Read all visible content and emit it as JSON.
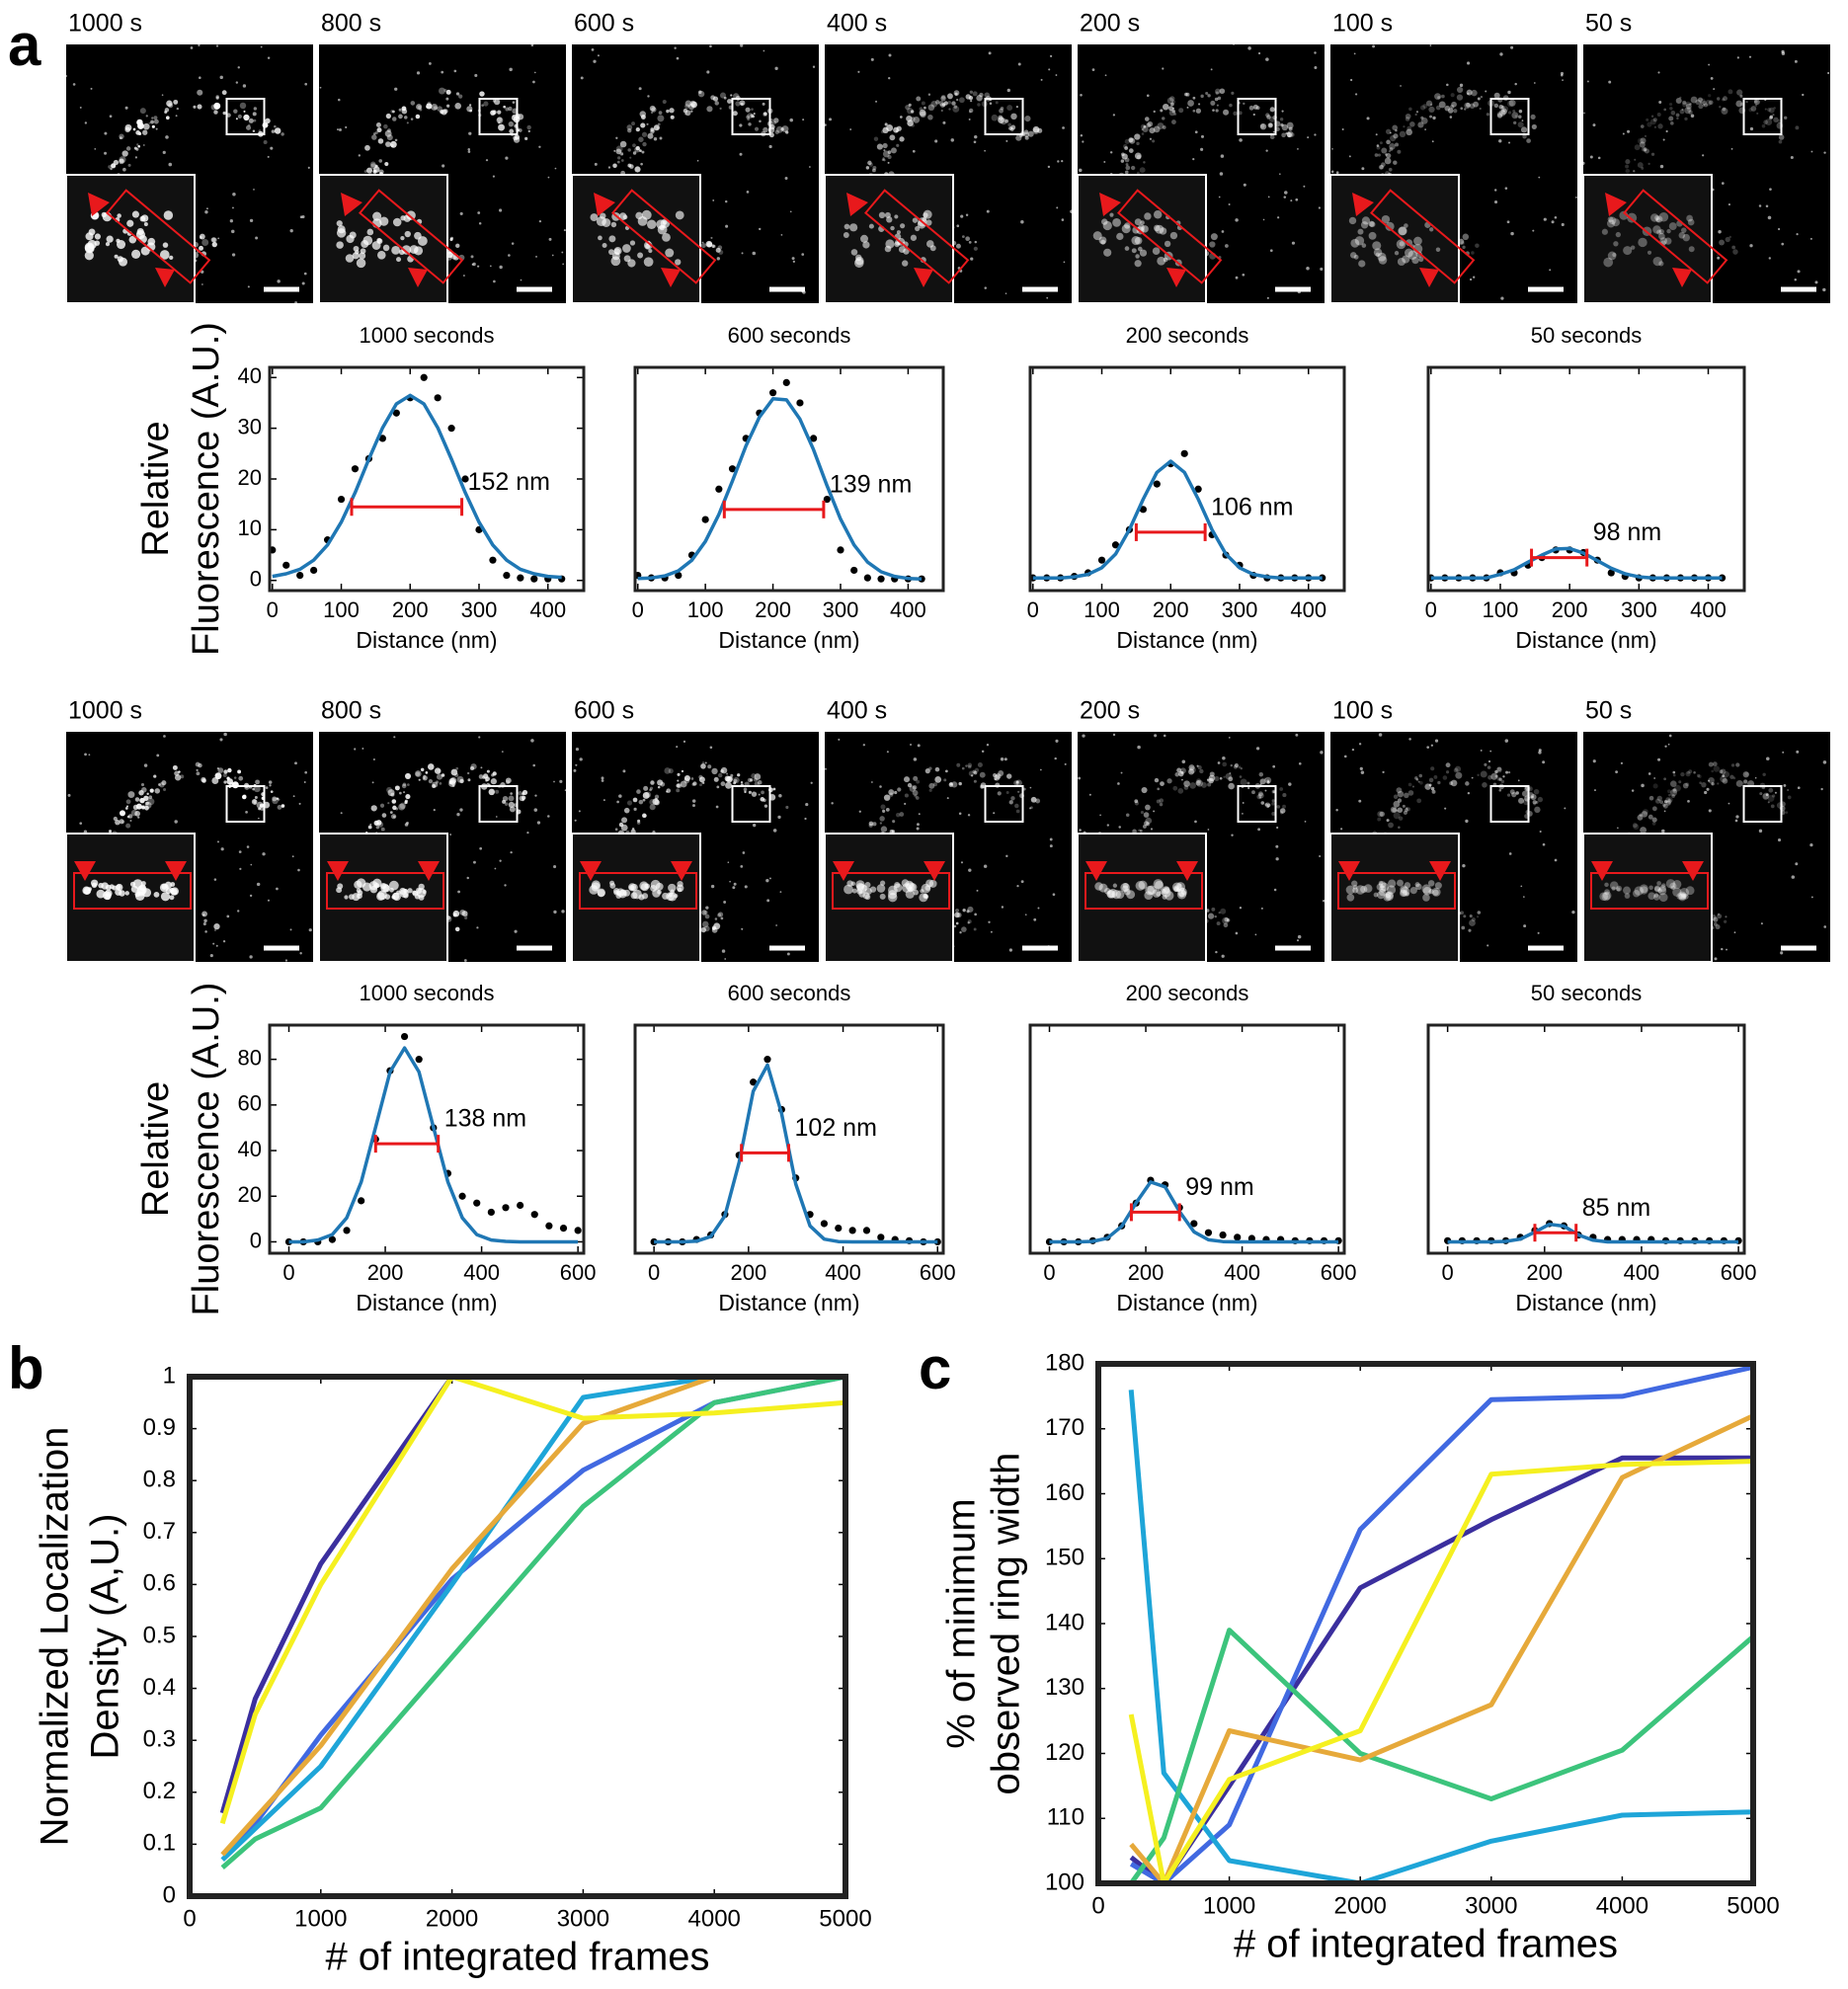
{
  "panel_labels": [
    "a",
    "b",
    "c"
  ],
  "image_rows": [
    {
      "labels": [
        "1000 s",
        "800 s",
        "600 s",
        "400 s",
        "200 s",
        "100 s",
        "50 s"
      ]
    },
    {
      "labels": [
        "1000 s",
        "800 s",
        "600 s",
        "400 s",
        "200 s",
        "100 s",
        "50 s"
      ]
    }
  ],
  "chart_data": [
    {
      "type": "profile",
      "title": "1000 seconds",
      "ylabel": [
        "Relative",
        "Fluorescence (A.U.)"
      ],
      "xlabel": "Distance (nm)",
      "x": [
        0,
        20,
        40,
        60,
        80,
        100,
        120,
        140,
        160,
        180,
        200,
        220,
        240,
        260,
        280,
        300,
        320,
        340,
        360,
        380,
        400,
        420
      ],
      "xlim": [
        -4,
        452
      ],
      "ylim": [
        -2,
        42
      ],
      "xticks": [
        0,
        100,
        200,
        300,
        400
      ],
      "yticks": [
        0,
        10,
        20,
        30,
        40
      ],
      "series": [
        {
          "mode": "markers",
          "color": "#000000",
          "values": [
            6,
            3,
            1,
            2,
            8,
            16,
            22,
            24,
            28,
            33,
            36,
            40,
            36,
            30,
            20,
            10,
            4,
            1,
            0.5,
            0.3,
            0.3,
            0.3
          ]
        },
        {
          "mode": "line",
          "color": "#1f77b4",
          "values": [
            0.8,
            1.3,
            2.2,
            4.0,
            7.0,
            11.5,
            17.3,
            23.9,
            30.1,
            34.8,
            36.5,
            34.8,
            30.1,
            23.9,
            17.3,
            11.5,
            7.0,
            4.0,
            2.2,
            1.3,
            0.8,
            0.6
          ]
        }
      ],
      "annotations": [
        {
          "text": "152 nm",
          "x1": 115,
          "x2": 275,
          "y": 14.5,
          "color": "#e8191c"
        }
      ]
    },
    {
      "type": "profile",
      "title": "600 seconds",
      "xlabel": "Distance (nm)",
      "x": [
        0,
        20,
        40,
        60,
        80,
        100,
        120,
        140,
        160,
        180,
        200,
        220,
        240,
        260,
        280,
        300,
        320,
        340,
        360,
        380,
        400,
        420
      ],
      "xlim": [
        -4,
        452
      ],
      "ylim": [
        -2,
        42
      ],
      "xticks": [
        0,
        100,
        200,
        300,
        400
      ],
      "series": [
        {
          "mode": "markers",
          "color": "#000000",
          "values": [
            1,
            0.5,
            0.5,
            1,
            5,
            12,
            18,
            22,
            28,
            33,
            37,
            39,
            35,
            28,
            16,
            6,
            2,
            0.5,
            0.3,
            0.3,
            0.3,
            0.3
          ]
        },
        {
          "mode": "line",
          "color": "#1f77b4",
          "values": [
            0.4,
            0.5,
            0.9,
            1.9,
            4.0,
            7.7,
            13.0,
            19.6,
            26.5,
            32.2,
            35.8,
            35.6,
            31.8,
            25.8,
            18.7,
            12.1,
            7.0,
            3.6,
            1.7,
            0.8,
            0.4,
            0.3
          ]
        }
      ],
      "annotations": [
        {
          "text": "139 nm",
          "x1": 128,
          "x2": 275,
          "y": 14,
          "color": "#e8191c"
        }
      ]
    },
    {
      "type": "profile",
      "title": "200 seconds",
      "xlabel": "Distance (nm)",
      "x": [
        0,
        20,
        40,
        60,
        80,
        100,
        120,
        140,
        160,
        180,
        200,
        220,
        240,
        260,
        280,
        300,
        320,
        340,
        360,
        380,
        400,
        420
      ],
      "xlim": [
        -4,
        452
      ],
      "ylim": [
        -2,
        42
      ],
      "xticks": [
        0,
        100,
        200,
        300,
        400
      ],
      "series": [
        {
          "mode": "markers",
          "color": "#000000",
          "values": [
            0.5,
            0.5,
            0.5,
            0.8,
            1.5,
            4,
            7,
            10,
            14,
            19,
            23,
            25,
            18,
            9,
            5,
            3,
            1,
            0.5,
            0.5,
            0.5,
            0.5,
            0.5
          ]
        },
        {
          "mode": "line",
          "color": "#1f77b4",
          "values": [
            0.5,
            0.5,
            0.5,
            0.7,
            1.2,
            2.5,
            5.2,
            10.0,
            16.0,
            21.3,
            23.5,
            21.3,
            16.0,
            10.0,
            5.2,
            2.5,
            1.2,
            0.7,
            0.5,
            0.5,
            0.5,
            0.5
          ]
        }
      ],
      "annotations": [
        {
          "text": "106 nm",
          "x1": 150,
          "x2": 250,
          "y": 9.5,
          "color": "#e8191c"
        }
      ]
    },
    {
      "type": "profile",
      "title": "50 seconds",
      "xlabel": "Distance (nm)",
      "x": [
        0,
        20,
        40,
        60,
        80,
        100,
        120,
        140,
        160,
        180,
        200,
        220,
        240,
        260,
        280,
        300,
        320,
        340,
        360,
        380,
        400,
        420
      ],
      "xlim": [
        -4,
        452
      ],
      "ylim": [
        -2,
        42
      ],
      "xticks": [
        0,
        100,
        200,
        300,
        400
      ],
      "series": [
        {
          "mode": "markers",
          "color": "#000000",
          "values": [
            0.5,
            0.5,
            0.5,
            0.5,
            0.5,
            1.5,
            1.5,
            3,
            4.5,
            6,
            6,
            5.5,
            4,
            1.5,
            0.8,
            0.5,
            0.5,
            0.5,
            0.5,
            0.5,
            0.5,
            0.5
          ]
        },
        {
          "mode": "line",
          "color": "#1f77b4",
          "values": [
            0.5,
            0.5,
            0.5,
            0.5,
            0.5,
            1.2,
            2.1,
            3.6,
            5.0,
            6.2,
            6.3,
            5.4,
            3.9,
            2.4,
            1.3,
            0.7,
            0.5,
            0.5,
            0.5,
            0.5,
            0.5,
            0.5
          ]
        }
      ],
      "annotations": [
        {
          "text": "98 nm",
          "x1": 145,
          "x2": 225,
          "y": 4.5,
          "color": "#e8191c"
        }
      ]
    },
    {
      "type": "profile",
      "title": "1000 seconds",
      "ylabel": [
        "Relative",
        "Fluorescence (A.U.)"
      ],
      "xlabel": "Distance (nm)",
      "x": [
        0,
        30,
        60,
        90,
        120,
        150,
        180,
        210,
        240,
        270,
        300,
        330,
        360,
        390,
        420,
        450,
        480,
        510,
        540,
        570,
        600
      ],
      "xlim": [
        -40,
        612
      ],
      "ylim": [
        -5,
        95
      ],
      "xticks": [
        0,
        200,
        400,
        600
      ],
      "yticks": [
        0,
        20,
        40,
        60,
        80
      ],
      "series": [
        {
          "mode": "markers",
          "color": "#000000",
          "values": [
            0,
            0,
            0,
            1,
            5,
            18,
            45,
            75,
            90,
            80,
            50,
            30,
            20,
            17,
            13,
            15,
            16,
            12,
            7,
            6,
            5
          ]
        },
        {
          "mode": "line",
          "color": "#1f77b4",
          "values": [
            0,
            0,
            0.8,
            3.2,
            10.5,
            26.2,
            50.3,
            74.5,
            85,
            74.5,
            50.3,
            26.2,
            10.5,
            3.2,
            0.8,
            0.2,
            0,
            0,
            0,
            0,
            0
          ]
        }
      ],
      "annotations": [
        {
          "text": "138 nm",
          "x1": 180,
          "x2": 310,
          "y": 43,
          "color": "#e8191c"
        }
      ]
    },
    {
      "type": "profile",
      "title": "600 seconds",
      "xlabel": "Distance (nm)",
      "x": [
        0,
        30,
        60,
        90,
        120,
        150,
        180,
        210,
        240,
        270,
        300,
        330,
        360,
        390,
        420,
        450,
        480,
        510,
        540,
        570,
        600
      ],
      "xlim": [
        -40,
        612
      ],
      "ylim": [
        -5,
        95
      ],
      "xticks": [
        0,
        200,
        400,
        600
      ],
      "series": [
        {
          "mode": "markers",
          "color": "#000000",
          "values": [
            0,
            0,
            0,
            1,
            3,
            12,
            38,
            70,
            80,
            58,
            28,
            12,
            8,
            6,
            5,
            5,
            2,
            1,
            0.5,
            0,
            0
          ]
        },
        {
          "mode": "line",
          "color": "#1f77b4",
          "values": [
            0,
            0,
            0,
            0.3,
            2.3,
            11.4,
            34.8,
            66,
            77.5,
            56.3,
            25.3,
            7.0,
            1.2,
            0.1,
            0,
            0,
            0,
            0,
            0,
            0,
            0
          ]
        }
      ],
      "annotations": [
        {
          "text": "102 nm",
          "x1": 185,
          "x2": 285,
          "y": 39,
          "color": "#e8191c"
        }
      ]
    },
    {
      "type": "profile",
      "title": "200 seconds",
      "xlabel": "Distance (nm)",
      "x": [
        0,
        30,
        60,
        90,
        120,
        150,
        180,
        210,
        240,
        270,
        300,
        330,
        360,
        390,
        420,
        450,
        480,
        510,
        540,
        570,
        600
      ],
      "xlim": [
        -40,
        612
      ],
      "ylim": [
        -5,
        95
      ],
      "xticks": [
        0,
        200,
        400,
        600
      ],
      "series": [
        {
          "mode": "markers",
          "color": "#000000",
          "values": [
            0,
            0,
            0,
            0.5,
            2,
            7,
            17,
            27,
            25,
            15,
            8,
            4,
            3,
            2,
            1.5,
            1,
            1,
            0.5,
            0.5,
            0.5,
            0.5
          ]
        },
        {
          "mode": "line",
          "color": "#1f77b4",
          "values": [
            0,
            0,
            0,
            0.2,
            1.6,
            6.8,
            17.1,
            26.2,
            24.1,
            13.3,
            4.4,
            0.9,
            0.1,
            0,
            0,
            0,
            0,
            0,
            0,
            0,
            0
          ]
        }
      ],
      "annotations": [
        {
          "text": "99 nm",
          "x1": 170,
          "x2": 270,
          "y": 13,
          "color": "#e8191c"
        }
      ]
    },
    {
      "type": "profile",
      "title": "50 seconds",
      "xlabel": "Distance (nm)",
      "x": [
        0,
        30,
        60,
        90,
        120,
        150,
        180,
        210,
        240,
        270,
        300,
        330,
        360,
        390,
        420,
        450,
        480,
        510,
        540,
        570,
        600
      ],
      "xlim": [
        -40,
        612
      ],
      "ylim": [
        -5,
        95
      ],
      "xticks": [
        0,
        200,
        400,
        600
      ],
      "series": [
        {
          "mode": "markers",
          "color": "#000000",
          "values": [
            0.5,
            0.5,
            0.5,
            0.5,
            0.5,
            2,
            5,
            8,
            7,
            3,
            2,
            1,
            1,
            1,
            1,
            0.5,
            0.5,
            0.5,
            0.5,
            0.5,
            0.5
          ]
        },
        {
          "mode": "line",
          "color": "#1f77b4",
          "values": [
            0,
            0,
            0,
            0,
            0.2,
            1.2,
            4.3,
            7.7,
            6.9,
            3.0,
            0.7,
            0,
            0,
            0,
            0,
            0,
            0,
            0,
            0,
            0,
            0
          ]
        }
      ],
      "annotations": [
        {
          "text": "85 nm",
          "x1": 180,
          "x2": 265,
          "y": 4,
          "color": "#e8191c"
        }
      ]
    },
    {
      "type": "line",
      "xlabel": "# of integrated frames",
      "ylabel": [
        "Normalized Localization",
        "Density (A,U.)"
      ],
      "x": [
        250,
        500,
        1000,
        2000,
        3000,
        4000,
        5000
      ],
      "xlim": [
        0,
        5000
      ],
      "ylim": [
        0,
        1
      ],
      "xticks": [
        0,
        1000,
        2000,
        3000,
        4000,
        5000
      ],
      "yticks": [
        0,
        0.1,
        0.2,
        0.3,
        0.4,
        0.5,
        0.6,
        0.7,
        0.8,
        0.9,
        1
      ],
      "series": [
        {
          "mode": "line",
          "color": "#3b2f9e",
          "values": [
            0.16,
            0.38,
            0.64,
            1.0,
            1.0,
            1.0,
            1.0
          ]
        },
        {
          "mode": "line",
          "color": "#4169e1",
          "values": [
            0.08,
            0.14,
            0.31,
            0.61,
            0.82,
            0.95,
            1.0
          ]
        },
        {
          "mode": "line",
          "color": "#1ea5d8",
          "values": [
            0.07,
            0.13,
            0.25,
            0.6,
            0.96,
            1.0,
            1.0
          ]
        },
        {
          "mode": "line",
          "color": "#3cc47c",
          "values": [
            0.055,
            0.11,
            0.17,
            0.46,
            0.75,
            0.95,
            1.0
          ]
        },
        {
          "mode": "line",
          "color": "#e6a93a",
          "values": [
            0.08,
            0.15,
            0.29,
            0.63,
            0.91,
            1.0,
            1.0
          ]
        },
        {
          "mode": "line",
          "color": "#f5f020",
          "values": [
            0.14,
            0.35,
            0.6,
            1.0,
            0.92,
            0.93,
            0.95
          ]
        }
      ]
    },
    {
      "type": "line",
      "xlabel": "# of integrated frames",
      "ylabel": [
        "% of minimum",
        "observed ring width"
      ],
      "x": [
        250,
        500,
        1000,
        2000,
        3000,
        4000,
        5000
      ],
      "xlim": [
        0,
        5000
      ],
      "ylim": [
        100,
        180
      ],
      "xticks": [
        0,
        1000,
        2000,
        3000,
        4000,
        5000
      ],
      "yticks": [
        100,
        110,
        120,
        130,
        140,
        150,
        160,
        170,
        180
      ],
      "series": [
        {
          "mode": "line",
          "color": "#3b2f9e",
          "values": [
            104,
            100,
            115,
            145.5,
            156,
            165.5,
            165.5
          ]
        },
        {
          "mode": "line",
          "color": "#4169e1",
          "values": [
            103,
            100,
            109,
            154.5,
            174.5,
            175,
            179.5
          ]
        },
        {
          "mode": "line",
          "color": "#1ea5d8",
          "values": [
            176,
            117,
            103.5,
            100,
            106.5,
            110.5,
            111
          ]
        },
        {
          "mode": "line",
          "color": "#3cc47c",
          "values": [
            100,
            107,
            139,
            120,
            113,
            120.5,
            138
          ]
        },
        {
          "mode": "line",
          "color": "#e6a93a",
          "values": [
            106,
            100,
            123.5,
            119,
            127.5,
            162.5,
            172
          ]
        },
        {
          "mode": "line",
          "color": "#f5f020",
          "values": [
            126,
            100,
            116,
            123.5,
            163,
            164.5,
            165
          ]
        }
      ]
    }
  ]
}
